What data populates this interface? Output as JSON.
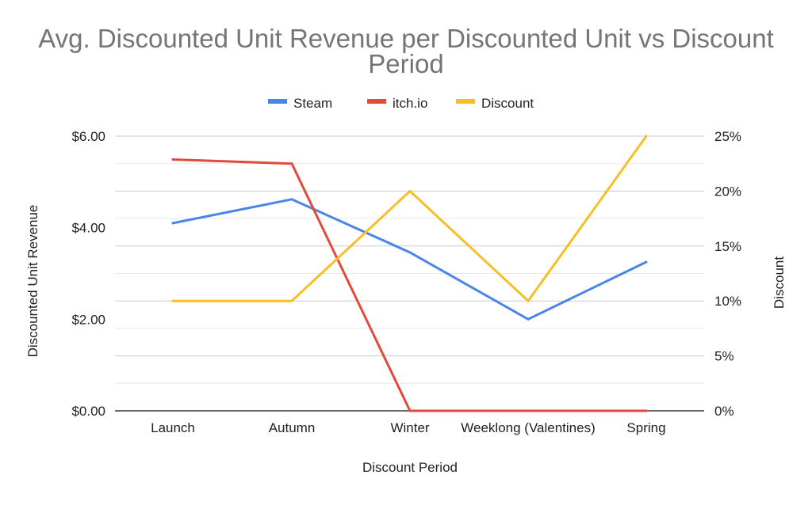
{
  "chart_data": {
    "type": "line",
    "title": "Avg. Discounted Unit Revenue per Discounted Unit vs Discount Period",
    "xlabel": "Discount Period",
    "ylabel": "Discounted Unit Revenue",
    "y2label": "Discount",
    "categories": [
      "Launch",
      "Autumn",
      "Winter",
      "Weeklong (Valentines)",
      "Spring"
    ],
    "ylim": [
      0,
      6
    ],
    "y_ticks": [
      0,
      2,
      4,
      6
    ],
    "y_tick_labels": [
      "$0.00",
      "$2.00",
      "$4.00",
      "$6.00"
    ],
    "y2lim": [
      0,
      0.25
    ],
    "y2_ticks": [
      0,
      0.05,
      0.1,
      0.15,
      0.2,
      0.25
    ],
    "y2_tick_labels": [
      "0%",
      "5%",
      "10%",
      "15%",
      "20%",
      "25%"
    ],
    "grid": true,
    "legend_position": "top-center",
    "series": [
      {
        "name": "Steam",
        "axis": "left",
        "color": "#4a86e8",
        "values": [
          4.1,
          4.62,
          3.46,
          2.0,
          3.25
        ]
      },
      {
        "name": "itch.io",
        "axis": "left",
        "color": "#e24a3b",
        "values": [
          5.49,
          5.4,
          0.0,
          0.0,
          0.0
        ]
      },
      {
        "name": "Discount",
        "axis": "right",
        "color": "#f6bf26",
        "values": [
          0.1,
          0.1,
          0.2,
          0.1,
          0.25
        ]
      }
    ]
  }
}
